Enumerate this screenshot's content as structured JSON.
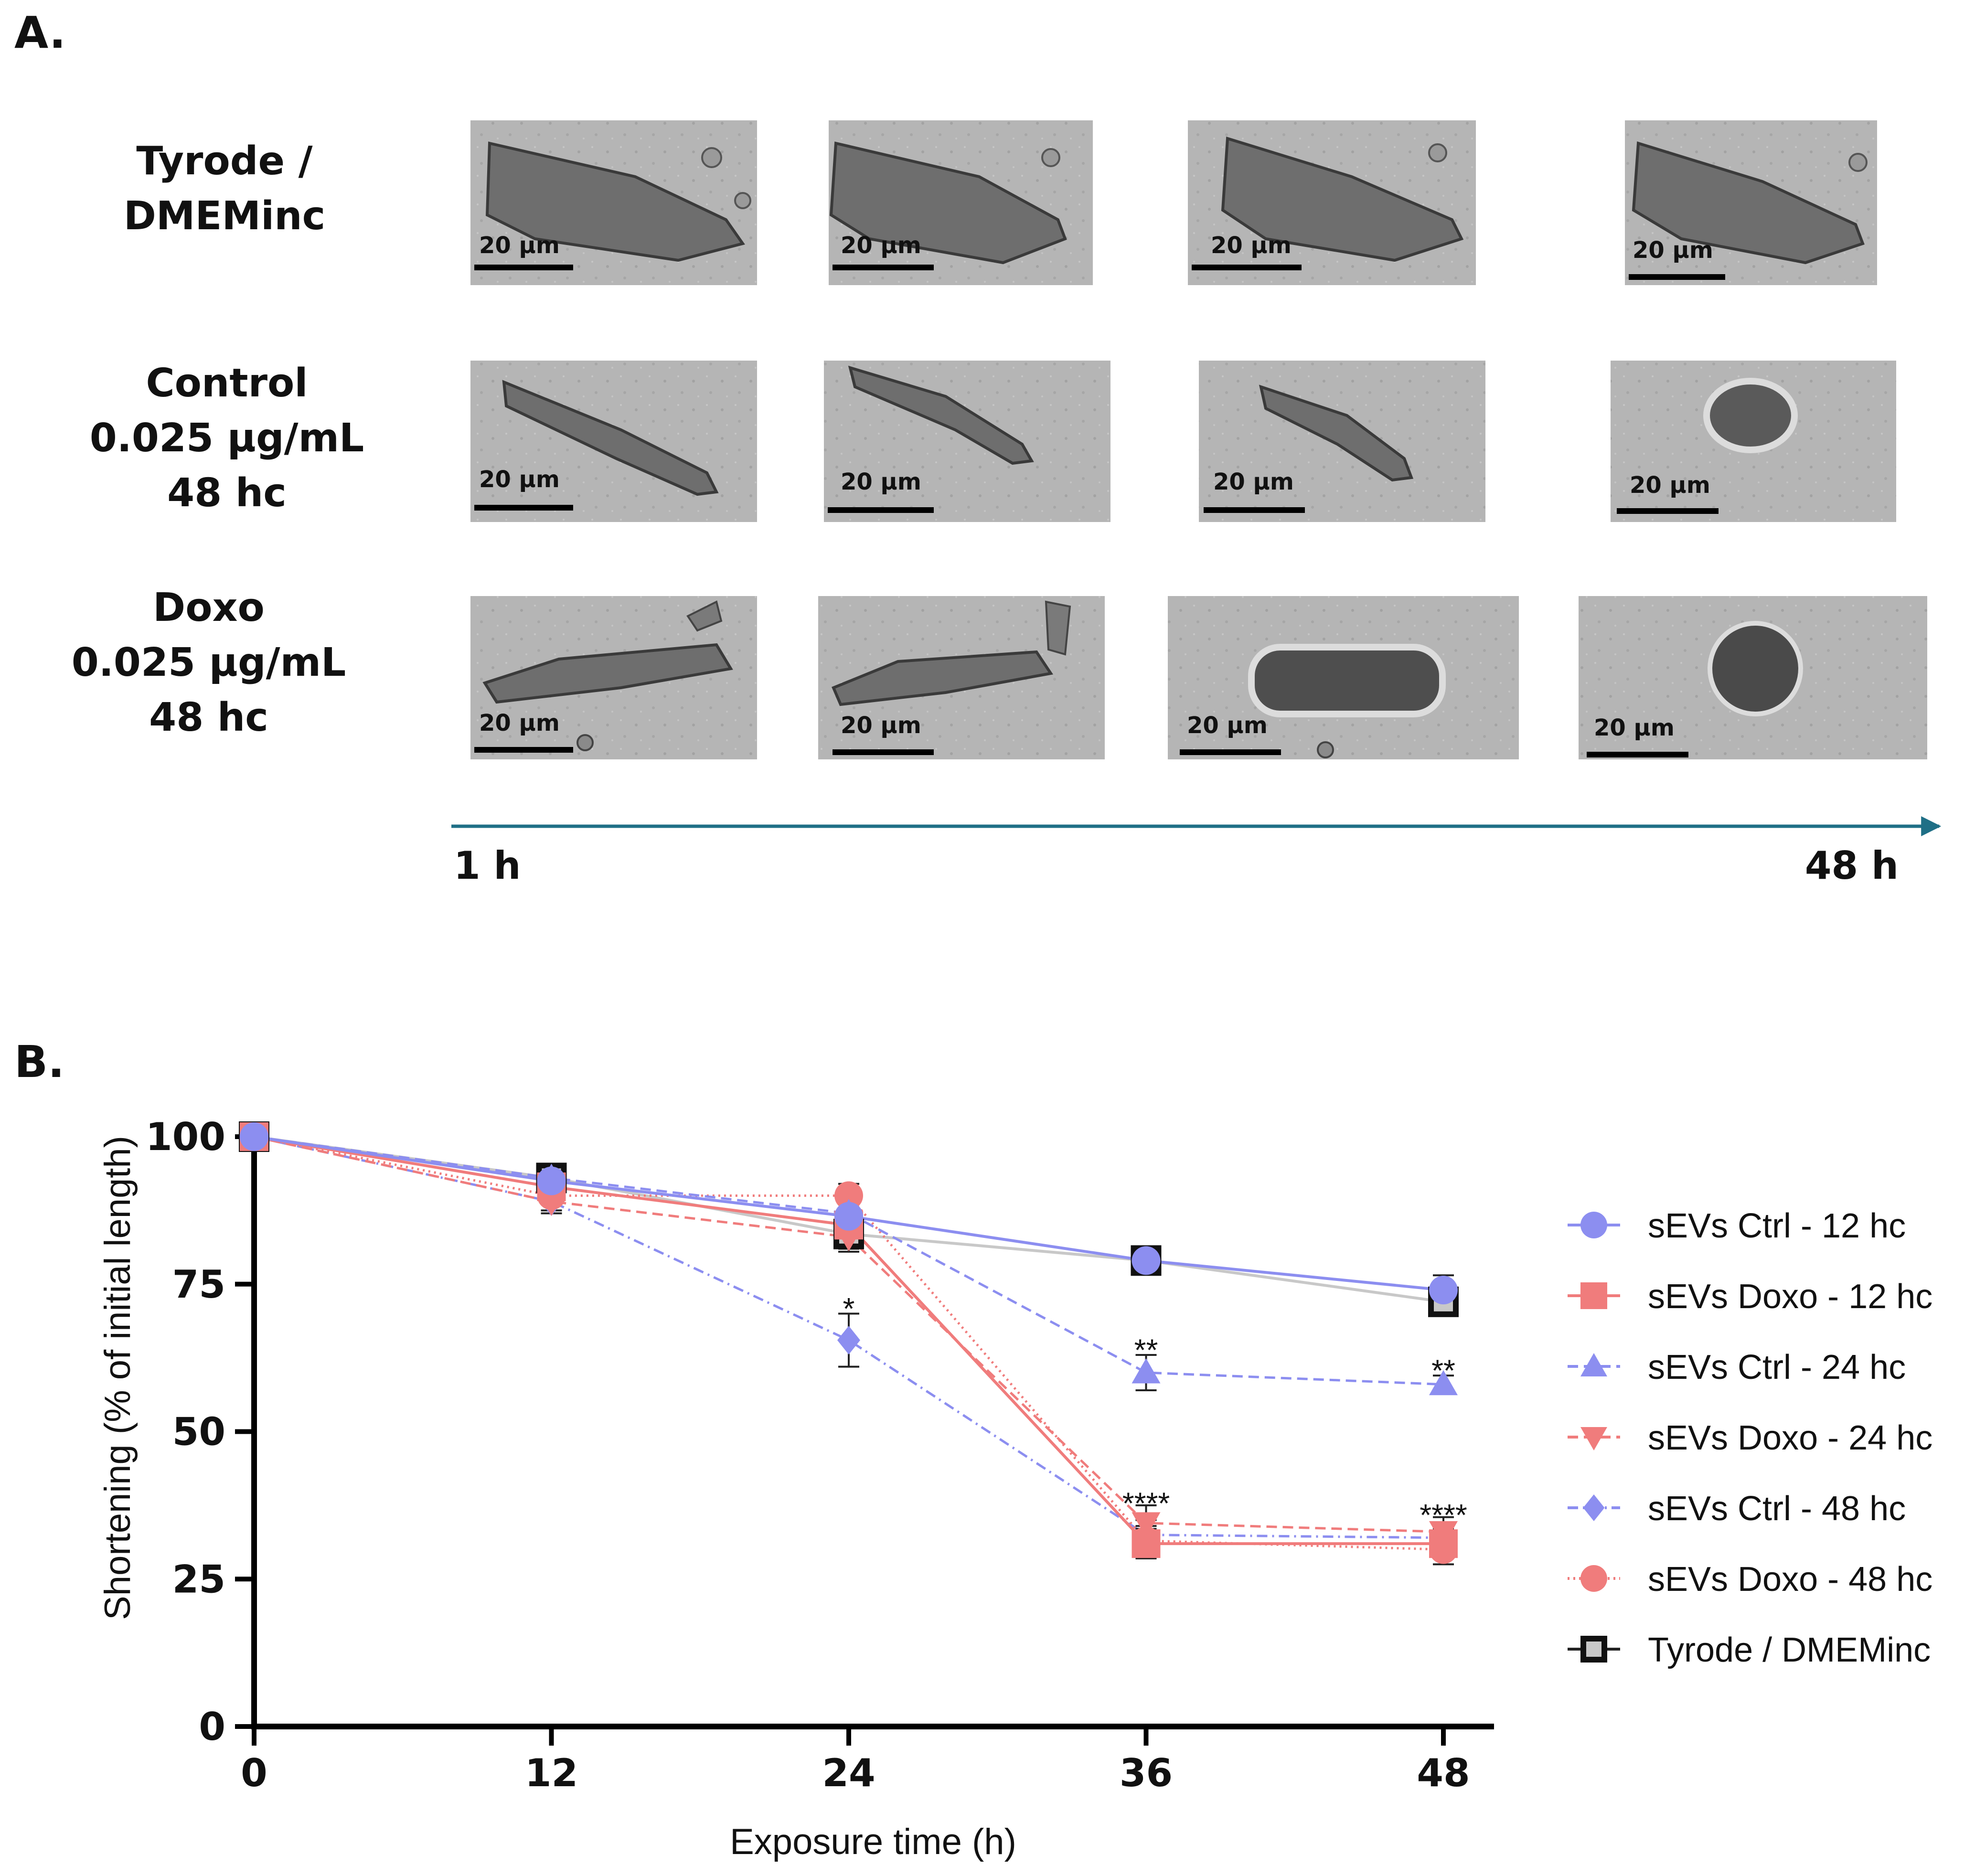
{
  "panel_a": {
    "label": "A.",
    "rows": [
      {
        "label_lines": [
          "Tyrode /",
          "DMEMinc"
        ]
      },
      {
        "label_lines": [
          "Control",
          "0.025 μg/mL",
          "48 hc"
        ]
      },
      {
        "label_lines": [
          "Doxo",
          "0.025 μg/mL",
          "48 hc"
        ]
      }
    ],
    "scale_bar_label": "20 μm",
    "timeline": {
      "start": "1 h",
      "end": "48 h",
      "color": "#1f6f86"
    }
  },
  "panel_b": {
    "label": "B."
  },
  "chart_data": {
    "type": "line",
    "xlabel": "Exposure time (h)",
    "ylabel": "Shortening (% of initial length)",
    "x": [
      0,
      12,
      24,
      36,
      48
    ],
    "xticks": [
      "0",
      "12",
      "24",
      "36",
      "48"
    ],
    "yticks": [
      "0",
      "25",
      "50",
      "75",
      "100"
    ],
    "ytick_values": [
      0,
      25,
      50,
      75,
      100
    ],
    "xlim": [
      0,
      50
    ],
    "ylim": [
      0,
      100
    ],
    "legend_position": "right",
    "series": [
      {
        "name": "sEVs Ctrl - 12 hc",
        "values": [
          100,
          92.5,
          86.5,
          79,
          74
        ],
        "errors": [
          0,
          1.5,
          2,
          1.5,
          2.5
        ],
        "color": "#8c8ef0",
        "marker": "circle",
        "line": "solid"
      },
      {
        "name": "sEVs Doxo - 12 hc",
        "values": [
          100,
          91.5,
          85,
          31,
          31
        ],
        "errors": [
          0,
          2,
          2.5,
          2.5,
          2.5
        ],
        "color": "#f07c7c",
        "marker": "square",
        "line": "solid"
      },
      {
        "name": "sEVs Ctrl - 24 hc",
        "values": [
          100,
          93,
          87,
          60,
          58
        ],
        "errors": [
          0,
          2,
          2.5,
          3,
          1.5
        ],
        "color": "#8c8ef0",
        "marker": "triangle-up",
        "line": "dashed"
      },
      {
        "name": "sEVs Doxo - 24 hc",
        "values": [
          100,
          89,
          83,
          34.5,
          33
        ],
        "errors": [
          0,
          2,
          2.5,
          3,
          2.5
        ],
        "color": "#f07c7c",
        "marker": "triangle-down",
        "line": "dashed"
      },
      {
        "name": "sEVs Ctrl - 48 hc",
        "values": [
          100,
          89,
          65.5,
          32.5,
          32
        ],
        "errors": [
          0,
          2,
          4.5,
          2.5,
          2.5
        ],
        "color": "#8c8ef0",
        "marker": "diamond",
        "line": "dashdot"
      },
      {
        "name": "sEVs Doxo - 48 hc",
        "values": [
          100,
          90,
          90,
          31.5,
          30
        ],
        "errors": [
          0,
          2.5,
          2,
          2.5,
          2.5
        ],
        "color": "#f07c7c",
        "marker": "circle",
        "line": "dotted"
      },
      {
        "name": "Tyrode / DMEMinc",
        "values": [
          100,
          93,
          83.5,
          79,
          72
        ],
        "errors": [
          0,
          2,
          2.5,
          1.5,
          2
        ],
        "color": "#c8c8c8",
        "marker": "square-open",
        "line": "solid"
      }
    ],
    "annotations": [
      {
        "x": 24,
        "y": 71.5,
        "text": "*"
      },
      {
        "x": 36,
        "y": 64.5,
        "text": "**"
      },
      {
        "x": 48,
        "y": 61,
        "text": "**"
      },
      {
        "x": 36,
        "y": 38.5,
        "text": "****"
      },
      {
        "x": 48,
        "y": 36.5,
        "text": "****"
      }
    ]
  }
}
